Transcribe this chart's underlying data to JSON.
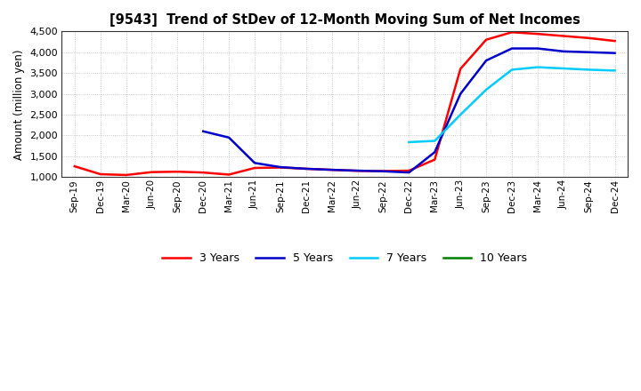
{
  "title": "[9543]  Trend of StDev of 12-Month Moving Sum of Net Incomes",
  "ylabel": "Amount (million yen)",
  "ylim": [
    1000,
    4500
  ],
  "yticks": [
    1000,
    1500,
    2000,
    2500,
    3000,
    3500,
    4000,
    4500
  ],
  "background_color": "#ffffff",
  "grid_color": "#bbbbbb",
  "x_labels": [
    "Sep-19",
    "Dec-19",
    "Mar-20",
    "Jun-20",
    "Sep-20",
    "Dec-20",
    "Mar-21",
    "Jun-21",
    "Sep-21",
    "Dec-21",
    "Mar-22",
    "Jun-22",
    "Sep-22",
    "Dec-22",
    "Mar-23",
    "Jun-23",
    "Sep-23",
    "Dec-23",
    "Mar-24",
    "Jun-24",
    "Sep-24",
    "Dec-24"
  ],
  "series": {
    "3yr": {
      "color": "#ff0000",
      "label": "3 Years",
      "x": [
        "Sep-19",
        "Dec-19",
        "Mar-20",
        "Jun-20",
        "Sep-20",
        "Dec-20",
        "Mar-21",
        "Jun-21",
        "Sep-21",
        "Dec-21",
        "Mar-22",
        "Jun-22",
        "Sep-22",
        "Dec-22",
        "Mar-23",
        "Jun-23",
        "Sep-23",
        "Dec-23",
        "Mar-24",
        "Jun-24",
        "Sep-24",
        "Dec-24"
      ],
      "y": [
        1260,
        1070,
        1050,
        1120,
        1130,
        1110,
        1060,
        1220,
        1230,
        1200,
        1175,
        1150,
        1145,
        1155,
        1420,
        3600,
        4300,
        4480,
        4440,
        4390,
        4340,
        4270
      ]
    },
    "5yr": {
      "color": "#0000cc",
      "label": "5 Years",
      "x": [
        "Dec-20",
        "Mar-21",
        "Jun-21",
        "Sep-21",
        "Dec-21",
        "Mar-22",
        "Jun-22",
        "Sep-22",
        "Dec-22",
        "Mar-23",
        "Jun-23",
        "Sep-23",
        "Dec-23",
        "Mar-24",
        "Jun-24",
        "Sep-24",
        "Dec-24"
      ],
      "y": [
        2100,
        1950,
        1340,
        1240,
        1200,
        1175,
        1155,
        1140,
        1110,
        1600,
        3000,
        3800,
        4090,
        4090,
        4020,
        4000,
        3980
      ]
    },
    "7yr": {
      "color": "#00ccff",
      "label": "7 Years",
      "x": [
        "Dec-22",
        "Mar-23",
        "Jun-23",
        "Sep-23",
        "Dec-23",
        "Mar-24",
        "Jun-24",
        "Sep-24",
        "Dec-24"
      ],
      "y": [
        1840,
        1870,
        2500,
        3100,
        3580,
        3640,
        3610,
        3580,
        3560
      ]
    },
    "10yr": {
      "color": "#008000",
      "label": "10 Years",
      "x": [],
      "y": []
    }
  }
}
